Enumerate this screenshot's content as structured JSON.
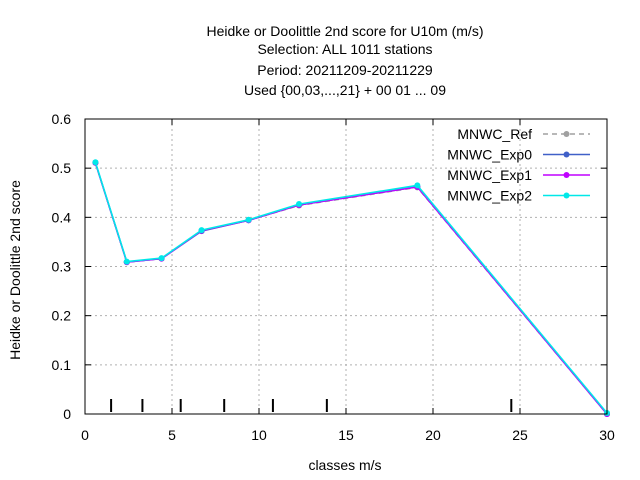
{
  "chart_data": {
    "type": "line",
    "title_lines": [
      "Heidke or Doolittle 2nd score  for U10m (m/s)",
      "Selection: ALL    1011 stations",
      "Period: 20211209-20211229",
      "Used {00,03,...,21} + 00 01 ... 09"
    ],
    "xlabel": "classes m/s",
    "ylabel": "Heidke or Doolittle 2nd score",
    "xlim": [
      0,
      30
    ],
    "ylim": [
      0,
      0.6
    ],
    "xticks": [
      "0",
      "5",
      "10",
      "15",
      "20",
      "25",
      "30"
    ],
    "yticks": [
      "0",
      "0.1",
      "0.2",
      "0.3",
      "0.4",
      "0.5",
      "0.6"
    ],
    "grid": true,
    "legend_position": "top-right",
    "class_markers_x": [
      1.5,
      3.3,
      5.5,
      8.0,
      10.8,
      13.9,
      24.5
    ],
    "series": [
      {
        "name": "MNWC_Ref",
        "color": "#a0a0a0",
        "dashed": true,
        "x": [
          0.6,
          2.4,
          4.4,
          6.7,
          9.4,
          12.3,
          19.1,
          30.0
        ],
        "y": [
          0.511,
          0.309,
          0.316,
          0.373,
          0.394,
          0.424,
          0.461,
          0.0
        ]
      },
      {
        "name": "MNWC_Exp0",
        "color": "#4060c8",
        "dashed": false,
        "x": [
          0.6,
          2.4,
          4.4,
          6.7,
          9.4,
          12.3,
          19.1,
          30.0
        ],
        "y": [
          0.511,
          0.309,
          0.316,
          0.372,
          0.394,
          0.425,
          0.462,
          0.0
        ]
      },
      {
        "name": "MNWC_Exp1",
        "color": "#c000ff",
        "dashed": false,
        "x": [
          0.6,
          2.4,
          4.4,
          6.7,
          9.4,
          12.3,
          19.1,
          30.0
        ],
        "y": [
          0.511,
          0.309,
          0.316,
          0.373,
          0.394,
          0.425,
          0.462,
          0.0
        ]
      },
      {
        "name": "MNWC_Exp2",
        "color": "#00e8e8",
        "dashed": false,
        "x": [
          0.6,
          2.4,
          4.4,
          6.7,
          9.4,
          12.3,
          19.1,
          30.0
        ],
        "y": [
          0.512,
          0.31,
          0.317,
          0.374,
          0.395,
          0.427,
          0.465,
          0.002
        ]
      }
    ]
  }
}
